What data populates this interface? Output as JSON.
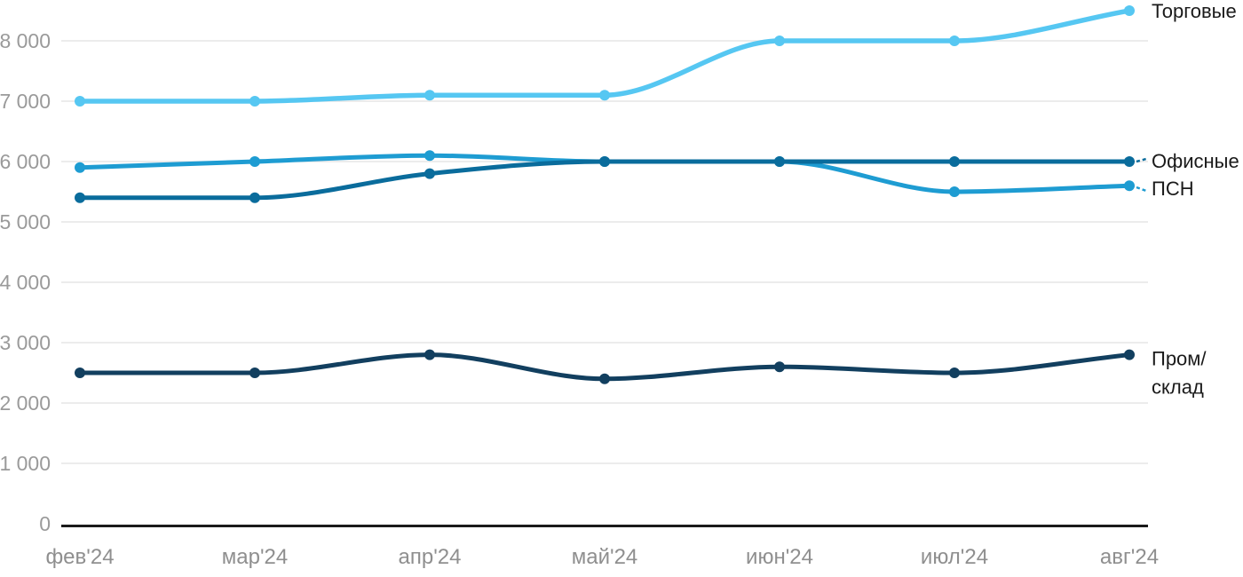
{
  "chart_data": {
    "type": "line",
    "title": "",
    "xlabel": "",
    "ylabel": "",
    "grid": true,
    "legend_position": "right-of-line-end",
    "ylim": [
      0,
      8800
    ],
    "y_ticks": [
      0,
      1000,
      2000,
      3000,
      4000,
      5000,
      6000,
      7000,
      8000
    ],
    "y_tick_labels": [
      "0",
      "1 000",
      "2 000",
      "3 000",
      "4 000",
      "5 000",
      "6 000",
      "7 000",
      "8 000"
    ],
    "categories": [
      "фев'24",
      "мар'24",
      "апр'24",
      "май'24",
      "июн'24",
      "июл'24",
      "авг'24"
    ],
    "series": [
      {
        "key": "torgovye",
        "name": "Торговые",
        "label_lines": [
          "Торговые"
        ],
        "color": "#56c7f2",
        "values": [
          7000,
          7000,
          7100,
          7100,
          8000,
          8000,
          8500
        ],
        "leader": false
      },
      {
        "key": "psn",
        "name": "ПСН",
        "label_lines": [
          "ПСН"
        ],
        "color": "#1e9cd2",
        "values": [
          5900,
          6000,
          6100,
          6000,
          6000,
          5500,
          5600
        ],
        "leader": true
      },
      {
        "key": "ofisnye",
        "name": "Офисные",
        "label_lines": [
          "Офисные"
        ],
        "color": "#0a6c9c",
        "values": [
          5400,
          5400,
          5800,
          6000,
          6000,
          6000,
          6000
        ],
        "leader": true
      },
      {
        "key": "prom-sklad",
        "name": "Пром/склад",
        "label_lines": [
          "Пром/",
          "склад"
        ],
        "color": "#123f5f",
        "values": [
          2500,
          2500,
          2800,
          2400,
          2600,
          2500,
          2800
        ],
        "leader": false
      }
    ],
    "colors": {
      "background": "#ffffff",
      "gridline": "#e6e6e6",
      "axis_line": "#1a1a1a",
      "axis_text": "#9a9a9a",
      "label_text": "#1a1a1a"
    }
  }
}
